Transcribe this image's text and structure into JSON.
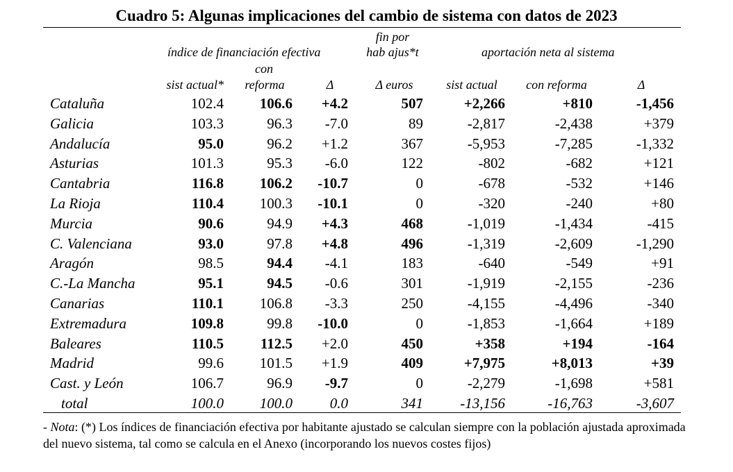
{
  "title": "Cuadro 5: Algunas implicaciones del cambio de sistema con datos de 2023",
  "headers": {
    "group_indice": "índice de financiación efectiva",
    "fin_por_line1": "fin por",
    "fin_por_line2": "hab ajus*t",
    "group_aportacion": "aportación neta al sistema",
    "con_line1": "con",
    "col_sist_actual_star": "sist actual*",
    "col_reforma": "reforma",
    "col_delta": "Δ",
    "col_delta_euros": "Δ euros",
    "col_sist_actual": "sist actual",
    "col_con_reforma": "con reforma",
    "col_delta2": "Δ"
  },
  "rows": [
    {
      "name": "Cataluña",
      "v": [
        "102.4",
        "106.6",
        "+4.2",
        "507",
        "+2,266",
        "+810",
        "-1,456"
      ],
      "bold": [
        false,
        true,
        true,
        true,
        true,
        true,
        true
      ]
    },
    {
      "name": "Galicia",
      "v": [
        "103.3",
        "96.3",
        "-7.0",
        "89",
        "-2,817",
        "-2,438",
        "+379"
      ],
      "bold": [
        false,
        false,
        false,
        false,
        false,
        false,
        false
      ]
    },
    {
      "name": "Andalucía",
      "v": [
        "95.0",
        "96.2",
        "+1.2",
        "367",
        "-5,953",
        "-7,285",
        "-1,332"
      ],
      "bold": [
        true,
        false,
        false,
        false,
        false,
        false,
        false
      ]
    },
    {
      "name": "Asturias",
      "v": [
        "101.3",
        "95.3",
        "-6.0",
        "122",
        "-802",
        "-682",
        "+121"
      ],
      "bold": [
        false,
        false,
        false,
        false,
        false,
        false,
        false
      ]
    },
    {
      "name": "Cantabria",
      "v": [
        "116.8",
        "106.2",
        "-10.7",
        "0",
        "-678",
        "-532",
        "+146"
      ],
      "bold": [
        true,
        true,
        true,
        false,
        false,
        false,
        false
      ]
    },
    {
      "name": "La Rioja",
      "v": [
        "110.4",
        "100.3",
        "-10.1",
        "0",
        "-320",
        "-240",
        "+80"
      ],
      "bold": [
        true,
        false,
        true,
        false,
        false,
        false,
        false
      ]
    },
    {
      "name": "Murcia",
      "v": [
        "90.6",
        "94.9",
        "+4.3",
        "468",
        "-1,019",
        "-1,434",
        "-415"
      ],
      "bold": [
        true,
        false,
        true,
        true,
        false,
        false,
        false
      ]
    },
    {
      "name": "C. Valenciana",
      "v": [
        "93.0",
        "97.8",
        "+4.8",
        "496",
        "-1,319",
        "-2,609",
        "-1,290"
      ],
      "bold": [
        true,
        false,
        true,
        true,
        false,
        false,
        false
      ]
    },
    {
      "name": "Aragón",
      "v": [
        "98.5",
        "94.4",
        "-4.1",
        "183",
        "-640",
        "-549",
        "+91"
      ],
      "bold": [
        false,
        true,
        false,
        false,
        false,
        false,
        false
      ]
    },
    {
      "name": "C.-La Mancha",
      "v": [
        "95.1",
        "94.5",
        "-0.6",
        "301",
        "-1,919",
        "-2,155",
        "-236"
      ],
      "bold": [
        true,
        true,
        false,
        false,
        false,
        false,
        false
      ]
    },
    {
      "name": "Canarias",
      "v": [
        "110.1",
        "106.8",
        "-3.3",
        "250",
        "-4,155",
        "-4,496",
        "-340"
      ],
      "bold": [
        true,
        false,
        false,
        false,
        false,
        false,
        false
      ]
    },
    {
      "name": "Extremadura",
      "v": [
        "109.8",
        "99.8",
        "-10.0",
        "0",
        "-1,853",
        "-1,664",
        "+189"
      ],
      "bold": [
        true,
        false,
        true,
        false,
        false,
        false,
        false
      ]
    },
    {
      "name": "Baleares",
      "v": [
        "110.5",
        "112.5",
        "+2.0",
        "450",
        "+358",
        "+194",
        "-164"
      ],
      "bold": [
        true,
        true,
        false,
        true,
        true,
        true,
        true
      ]
    },
    {
      "name": "Madrid",
      "v": [
        "99.6",
        "101.5",
        "+1.9",
        "409",
        "+7,975",
        "+8,013",
        "+39"
      ],
      "bold": [
        false,
        false,
        false,
        true,
        true,
        true,
        true
      ]
    },
    {
      "name": "Cast. y León",
      "v": [
        "106.7",
        "96.9",
        "-9.7",
        "0",
        "-2,279",
        "-1,698",
        "+581"
      ],
      "bold": [
        false,
        false,
        true,
        false,
        false,
        false,
        false
      ]
    }
  ],
  "total": {
    "name": "total",
    "v": [
      "100.0",
      "100.0",
      "0.0",
      "341",
      "-13,156",
      "-16,763",
      "-3,607"
    ]
  },
  "note": {
    "prefix": "- ",
    "label": "Nota",
    "text": ": (*) Los índices de financiación efectiva por habitante ajustado se calculan siempre con la población ajustada aproximada del nuevo sistema, tal como se calcula en el Anexo (incorporando los nuevos costes fijos)"
  }
}
